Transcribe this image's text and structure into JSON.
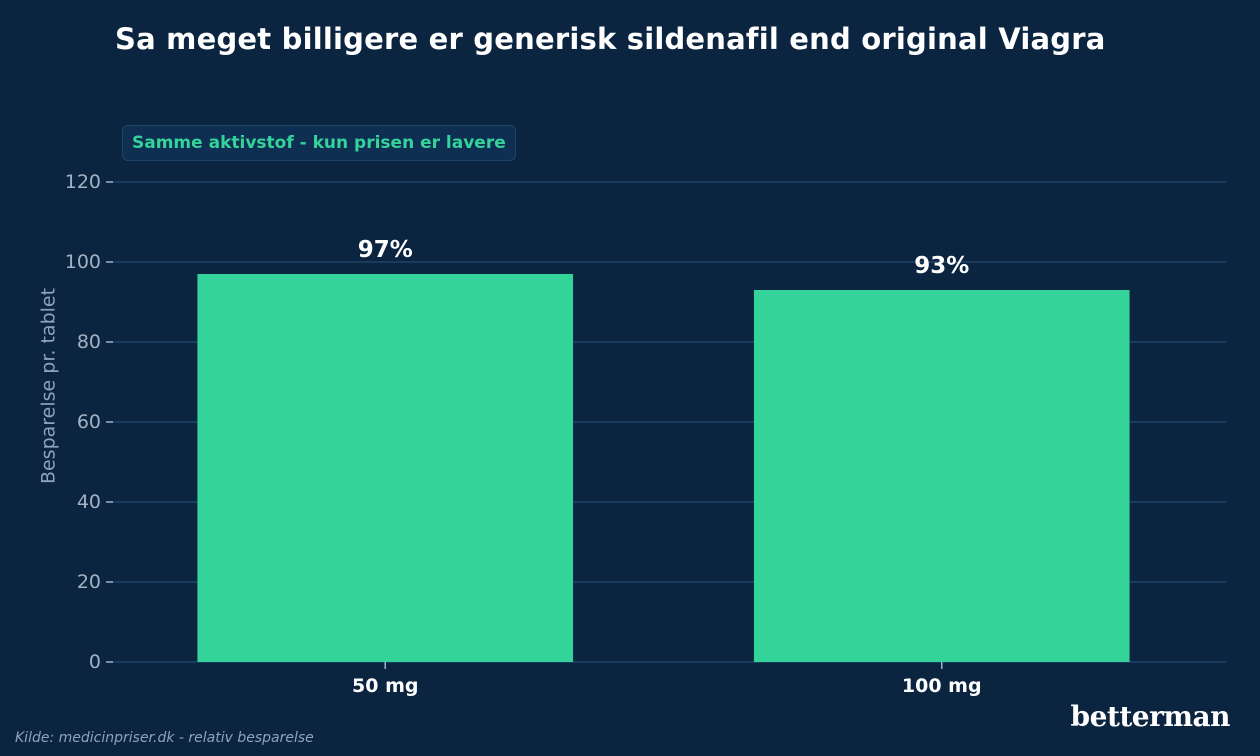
{
  "header": {
    "title": "Sa meget billigere er generisk sildenafil end original Viagra"
  },
  "annotation": {
    "badge_text": "Samme aktivstof - kun prisen er lavere"
  },
  "footer": {
    "source": "Kilde: medicinpriser.dk - relativ besparelse",
    "brand": "betterman"
  },
  "colors": {
    "background": "#0b2440",
    "bar": "#34d399",
    "grid": "#1e4468",
    "accent_text": "#34d399"
  },
  "chart_data": {
    "type": "bar",
    "title": "Sa meget billigere er generisk sildenafil end original Viagra",
    "xlabel": "",
    "ylabel": "Besparelse pr. tablet",
    "categories": [
      "50 mg",
      "100 mg"
    ],
    "values": [
      97,
      93
    ],
    "data_labels": [
      "97%",
      "93%"
    ],
    "ylim": [
      0,
      120
    ],
    "yticks": [
      0,
      20,
      40,
      60,
      80,
      100,
      120
    ],
    "grid": true,
    "legend": "none"
  }
}
